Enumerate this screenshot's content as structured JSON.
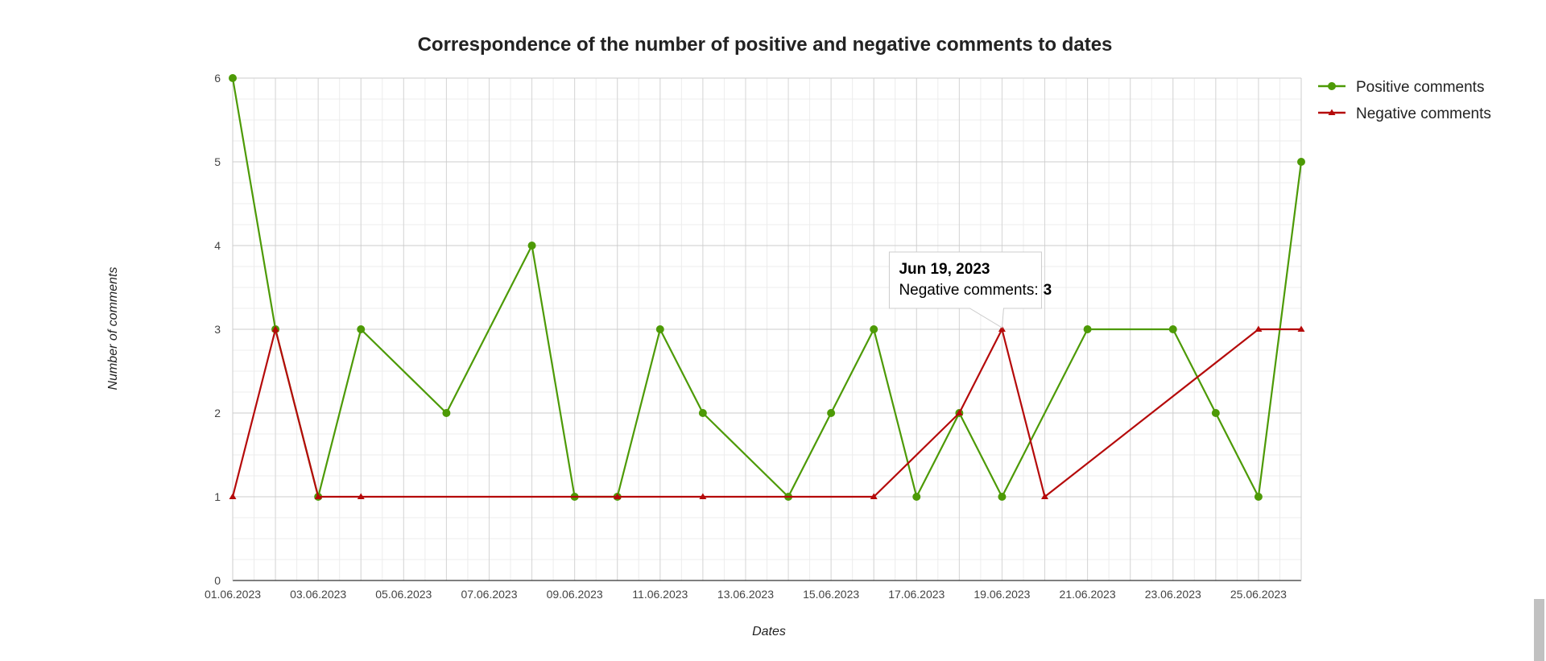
{
  "chart_data": {
    "type": "line",
    "title": "Correspondence of the number of positive and negative comments to dates",
    "xlabel": "Dates",
    "ylabel": "Number of comments",
    "x": [
      "2023-06-01",
      "2023-06-02",
      "2023-06-03",
      "2023-06-04",
      "2023-06-05",
      "2023-06-06",
      "2023-06-07",
      "2023-06-08",
      "2023-06-09",
      "2023-06-10",
      "2023-06-11",
      "2023-06-12",
      "2023-06-13",
      "2023-06-14",
      "2023-06-15",
      "2023-06-16",
      "2023-06-17",
      "2023-06-18",
      "2023-06-19",
      "2023-06-20",
      "2023-06-21",
      "2023-06-22",
      "2023-06-23",
      "2023-06-24",
      "2023-06-25",
      "2023-06-26"
    ],
    "x_ticks": [
      "01.06.2023",
      "03.06.2023",
      "05.06.2023",
      "07.06.2023",
      "09.06.2023",
      "11.06.2023",
      "13.06.2023",
      "15.06.2023",
      "17.06.2023",
      "19.06.2023",
      "21.06.2023",
      "23.06.2023",
      "25.06.2023"
    ],
    "xlim": [
      "2023-06-01",
      "2023-06-26"
    ],
    "y_ticks": [
      0,
      1,
      2,
      3,
      4,
      5,
      6
    ],
    "ylim": [
      0,
      6
    ],
    "grid": true,
    "legend_position": "right",
    "series": [
      {
        "name": "Positive comments",
        "color": "#4d9a06",
        "marker": "circle",
        "points": [
          [
            "2023-06-01",
            6
          ],
          [
            "2023-06-02",
            3
          ],
          [
            "2023-06-03",
            1
          ],
          [
            "2023-06-04",
            3
          ],
          [
            "2023-06-06",
            2
          ],
          [
            "2023-06-08",
            4
          ],
          [
            "2023-06-09",
            1
          ],
          [
            "2023-06-10",
            1
          ],
          [
            "2023-06-11",
            3
          ],
          [
            "2023-06-12",
            2
          ],
          [
            "2023-06-14",
            1
          ],
          [
            "2023-06-15",
            2
          ],
          [
            "2023-06-16",
            3
          ],
          [
            "2023-06-17",
            1
          ],
          [
            "2023-06-18",
            2
          ],
          [
            "2023-06-19",
            1
          ],
          [
            "2023-06-21",
            3
          ],
          [
            "2023-06-23",
            3
          ],
          [
            "2023-06-24",
            2
          ],
          [
            "2023-06-25",
            1
          ],
          [
            "2023-06-26",
            5
          ]
        ]
      },
      {
        "name": "Negative comments",
        "color": "#b50a0a",
        "marker": "triangle",
        "points": [
          [
            "2023-06-01",
            1
          ],
          [
            "2023-06-02",
            3
          ],
          [
            "2023-06-03",
            1
          ],
          [
            "2023-06-04",
            1
          ],
          [
            "2023-06-10",
            1
          ],
          [
            "2023-06-12",
            1
          ],
          [
            "2023-06-16",
            1
          ],
          [
            "2023-06-18",
            2
          ],
          [
            "2023-06-19",
            3
          ],
          [
            "2023-06-20",
            1
          ],
          [
            "2023-06-25",
            3
          ],
          [
            "2023-06-26",
            3
          ]
        ]
      }
    ],
    "tooltip": {
      "date": "Jun 19, 2023",
      "series_label": "Negative comments:",
      "value": "3",
      "series_index": 1,
      "point_date": "2023-06-19"
    }
  }
}
